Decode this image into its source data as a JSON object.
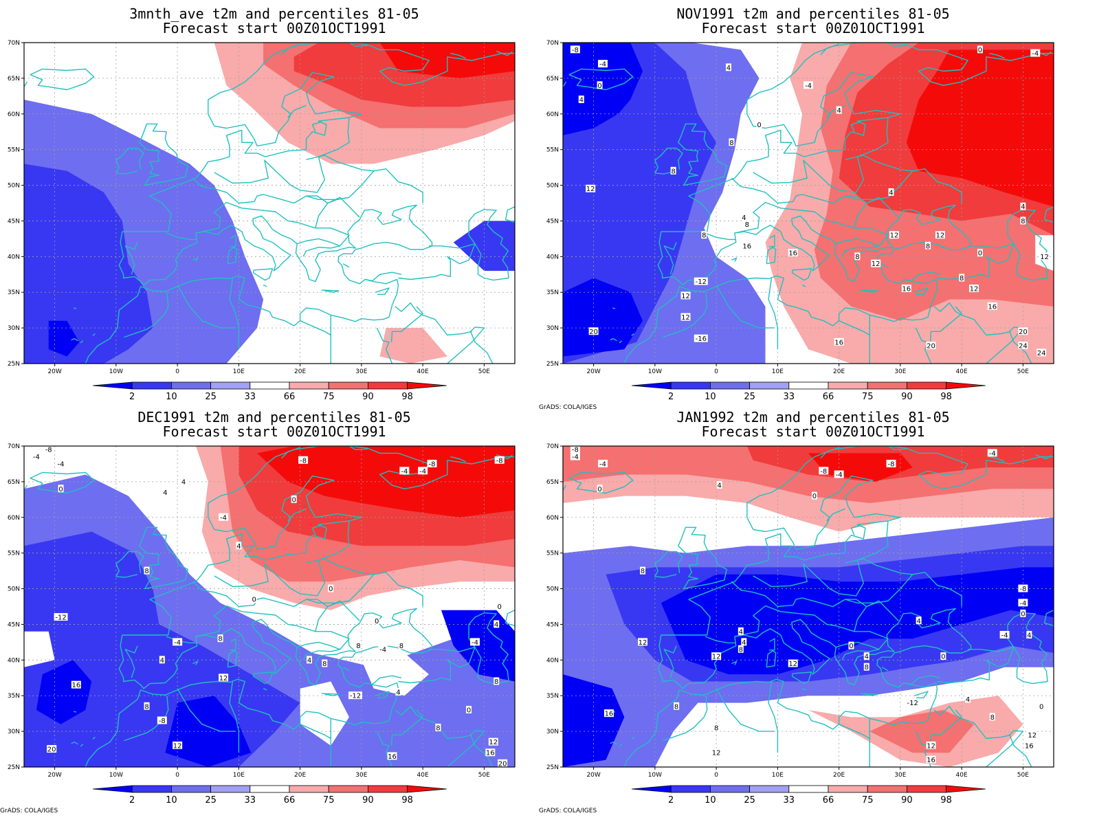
{
  "credit": "GrADS: COLA/IGES",
  "colorbar": {
    "labels": [
      "2",
      "10",
      "25",
      "33",
      "66",
      "75",
      "90",
      "98"
    ],
    "colors": [
      "#0000f5",
      "#3838f2",
      "#6e6ef0",
      "#a0a0f5",
      "#ffffff",
      "#f9aaaa",
      "#f57070",
      "#f03c3c",
      "#f50a0a"
    ]
  },
  "axes": {
    "lon_ticks": [
      "20W",
      "10W",
      "0",
      "10E",
      "20E",
      "30E",
      "40E",
      "50E"
    ],
    "lat_ticks": [
      "25N",
      "30N",
      "35N",
      "40N",
      "45N",
      "50N",
      "55N",
      "60N",
      "65N",
      "70N"
    ],
    "lon_range": [
      -25,
      55
    ],
    "lat_range": [
      25,
      70
    ]
  },
  "coast_color": "#20c0c0",
  "panels": [
    {
      "title": "3mnth_ave t2m and percentiles 81-05",
      "subtitle": "Forecast start 00Z01OCT1991",
      "show_credit": false,
      "contour_labels": []
    },
    {
      "title": "NOV1991 t2m and percentiles 81-05",
      "subtitle": "Forecast start 00Z01OCT1991",
      "show_credit": true,
      "contour_labels": [
        {
          "t": "-8",
          "lon": -23,
          "lat": 69
        },
        {
          "t": "-4",
          "lon": -18.5,
          "lat": 67
        },
        {
          "t": "0",
          "lon": -19,
          "lat": 64
        },
        {
          "t": "4",
          "lon": -22,
          "lat": 62
        },
        {
          "t": "4",
          "lon": 2,
          "lat": 66.5
        },
        {
          "t": "-4",
          "lon": 15,
          "lat": 64
        },
        {
          "t": "0",
          "lon": 43,
          "lat": 69
        },
        {
          "t": "-4",
          "lon": 52,
          "lat": 68.5
        },
        {
          "t": "4",
          "lon": 20,
          "lat": 60.5
        },
        {
          "t": "0",
          "lon": 7,
          "lat": 58.5
        },
        {
          "t": "8",
          "lon": 2.5,
          "lat": 56
        },
        {
          "t": "8",
          "lon": -7,
          "lat": 52
        },
        {
          "t": "12",
          "lon": -20.5,
          "lat": 49.5
        },
        {
          "t": "4",
          "lon": 4.5,
          "lat": 45.5
        },
        {
          "t": "8",
          "lon": 5,
          "lat": 44.5
        },
        {
          "t": "4",
          "lon": 28.5,
          "lat": 49
        },
        {
          "t": "4",
          "lon": 50,
          "lat": 47
        },
        {
          "t": "8",
          "lon": 50,
          "lat": 45
        },
        {
          "t": "8",
          "lon": -2,
          "lat": 43
        },
        {
          "t": "16",
          "lon": 5,
          "lat": 41.5
        },
        {
          "t": "16",
          "lon": 12.5,
          "lat": 40.5
        },
        {
          "t": "12",
          "lon": 29,
          "lat": 43
        },
        {
          "t": "12",
          "lon": 36.5,
          "lat": 43
        },
        {
          "t": "8",
          "lon": 34.5,
          "lat": 41.5
        },
        {
          "t": "8",
          "lon": 23,
          "lat": 40
        },
        {
          "t": "12",
          "lon": 26,
          "lat": 39
        },
        {
          "t": "0",
          "lon": 43,
          "lat": 40.5
        },
        {
          "t": "12",
          "lon": 53.5,
          "lat": 40
        },
        {
          "t": "-12",
          "lon": -2.5,
          "lat": 36.5
        },
        {
          "t": "12",
          "lon": -5,
          "lat": 34.5
        },
        {
          "t": "8",
          "lon": 40,
          "lat": 37
        },
        {
          "t": "16",
          "lon": 31,
          "lat": 35.5
        },
        {
          "t": "12",
          "lon": 42,
          "lat": 35.5
        },
        {
          "t": "16",
          "lon": 45,
          "lat": 33
        },
        {
          "t": "12",
          "lon": -5,
          "lat": 31.5
        },
        {
          "t": "-16",
          "lon": -2.5,
          "lat": 28.5
        },
        {
          "t": "16",
          "lon": 20,
          "lat": 28
        },
        {
          "t": "20",
          "lon": -20,
          "lat": 29.5
        },
        {
          "t": "20",
          "lon": 50,
          "lat": 29.5
        },
        {
          "t": "24",
          "lon": 50,
          "lat": 27.5
        },
        {
          "t": "24",
          "lon": 53,
          "lat": 26.5
        },
        {
          "t": "20",
          "lon": 35,
          "lat": 27.5
        }
      ]
    },
    {
      "title": "DEC1991 t2m and percentiles 81-05",
      "subtitle": "Forecast start 00Z01OCT1991",
      "show_credit": true,
      "contour_labels": [
        {
          "t": "-8",
          "lon": -21,
          "lat": 69.5
        },
        {
          "t": "-4",
          "lon": -23,
          "lat": 68.5
        },
        {
          "t": "-4",
          "lon": -19,
          "lat": 67.5
        },
        {
          "t": "0",
          "lon": -19,
          "lat": 64
        },
        {
          "t": "4",
          "lon": 1,
          "lat": 65
        },
        {
          "t": "4",
          "lon": -2,
          "lat": 63.5
        },
        {
          "t": "-8",
          "lon": 20.5,
          "lat": 68
        },
        {
          "t": "-8",
          "lon": 41.5,
          "lat": 67.5
        },
        {
          "t": "-4",
          "lon": 37,
          "lat": 66.5
        },
        {
          "t": "-4",
          "lon": 40,
          "lat": 66.5
        },
        {
          "t": "-8",
          "lon": 52.5,
          "lat": 68
        },
        {
          "t": "0",
          "lon": 19,
          "lat": 62.5
        },
        {
          "t": "-4",
          "lon": 7.5,
          "lat": 60
        },
        {
          "t": "4",
          "lon": 10,
          "lat": 56
        },
        {
          "t": "8",
          "lon": -5,
          "lat": 52.5
        },
        {
          "t": "0",
          "lon": 25,
          "lat": 50
        },
        {
          "t": "0",
          "lon": 12.5,
          "lat": 48.5
        },
        {
          "t": "-12",
          "lon": -19,
          "lat": 46
        },
        {
          "t": "0",
          "lon": 32.5,
          "lat": 45.5
        },
        {
          "t": "0",
          "lon": 52.5,
          "lat": 47.5
        },
        {
          "t": "4",
          "lon": 52,
          "lat": 45
        },
        {
          "t": "-4",
          "lon": 0,
          "lat": 42.5
        },
        {
          "t": "8",
          "lon": 7,
          "lat": 43
        },
        {
          "t": "8",
          "lon": 29.5,
          "lat": 42
        },
        {
          "t": "-4",
          "lon": 48.5,
          "lat": 42.5
        },
        {
          "t": "4",
          "lon": 21.5,
          "lat": 40
        },
        {
          "t": "-4",
          "lon": 33.5,
          "lat": 41.5
        },
        {
          "t": "8",
          "lon": 36.5,
          "lat": 42
        },
        {
          "t": "4",
          "lon": -2.5,
          "lat": 40
        },
        {
          "t": "8",
          "lon": 24,
          "lat": 39.5
        },
        {
          "t": "12",
          "lon": 7.5,
          "lat": 37.5
        },
        {
          "t": "8",
          "lon": 52,
          "lat": 37
        },
        {
          "t": "16",
          "lon": -16.5,
          "lat": 36.5
        },
        {
          "t": "4",
          "lon": 36,
          "lat": 35.5
        },
        {
          "t": "-12",
          "lon": 29,
          "lat": 35
        },
        {
          "t": "8",
          "lon": -5,
          "lat": 33.5
        },
        {
          "t": "-8",
          "lon": -2.5,
          "lat": 31.5
        },
        {
          "t": "0",
          "lon": 47.5,
          "lat": 33
        },
        {
          "t": "8",
          "lon": 42.5,
          "lat": 30.5
        },
        {
          "t": "12",
          "lon": 0,
          "lat": 28
        },
        {
          "t": "20",
          "lon": -20.5,
          "lat": 27.5
        },
        {
          "t": "12",
          "lon": 51.5,
          "lat": 28.5
        },
        {
          "t": "16",
          "lon": 51,
          "lat": 27
        },
        {
          "t": "16",
          "lon": 35,
          "lat": 26.5
        },
        {
          "t": "20",
          "lon": 53,
          "lat": 25.5
        }
      ]
    },
    {
      "title": "JAN1992 t2m and percentiles 81-05",
      "subtitle": "Forecast start 00Z01OCT1991",
      "show_credit": true,
      "contour_labels": [
        {
          "t": "-8",
          "lon": -23,
          "lat": 69.5
        },
        {
          "t": "-4",
          "lon": -23,
          "lat": 68.5
        },
        {
          "t": "-4",
          "lon": -18.5,
          "lat": 67.5
        },
        {
          "t": "0",
          "lon": -19,
          "lat": 64
        },
        {
          "t": "4",
          "lon": 0.5,
          "lat": 64.5
        },
        {
          "t": "-8",
          "lon": 17.5,
          "lat": 66.5
        },
        {
          "t": "-4",
          "lon": 20,
          "lat": 66
        },
        {
          "t": "-8",
          "lon": 28.5,
          "lat": 67.5
        },
        {
          "t": "-4",
          "lon": 45,
          "lat": 69
        },
        {
          "t": "0",
          "lon": 16,
          "lat": 63
        },
        {
          "t": "8",
          "lon": -12,
          "lat": 52.5
        },
        {
          "t": "-8",
          "lon": 50,
          "lat": 50
        },
        {
          "t": "-4",
          "lon": 50,
          "lat": 48
        },
        {
          "t": "0",
          "lon": 50,
          "lat": 46.5
        },
        {
          "t": "4",
          "lon": 51,
          "lat": 43.5
        },
        {
          "t": "4",
          "lon": 33,
          "lat": 45.5
        },
        {
          "t": "12",
          "lon": -12,
          "lat": 42.5
        },
        {
          "t": "4",
          "lon": 4,
          "lat": 44
        },
        {
          "t": "4",
          "lon": 4.5,
          "lat": 42.5
        },
        {
          "t": "8",
          "lon": 4,
          "lat": 41.5
        },
        {
          "t": "-4",
          "lon": 47,
          "lat": 43.5
        },
        {
          "t": "12",
          "lon": 0,
          "lat": 40.5
        },
        {
          "t": "0",
          "lon": 22,
          "lat": 42
        },
        {
          "t": "12",
          "lon": 12.5,
          "lat": 39.5
        },
        {
          "t": "4",
          "lon": 24.5,
          "lat": 40.5
        },
        {
          "t": "0",
          "lon": 37,
          "lat": 40.5
        },
        {
          "t": "8",
          "lon": 24.5,
          "lat": 39
        },
        {
          "t": "8",
          "lon": -6.5,
          "lat": 33.5
        },
        {
          "t": "16",
          "lon": -17.5,
          "lat": 32.5
        },
        {
          "t": "-12",
          "lon": 32,
          "lat": 34
        },
        {
          "t": "4",
          "lon": 41,
          "lat": 34.5
        },
        {
          "t": "0",
          "lon": 53,
          "lat": 33.5
        },
        {
          "t": "8",
          "lon": 45,
          "lat": 32
        },
        {
          "t": "8",
          "lon": 0,
          "lat": 30.5
        },
        {
          "t": "12",
          "lon": 0,
          "lat": 27
        },
        {
          "t": "12",
          "lon": 51.5,
          "lat": 29.5
        },
        {
          "t": "12",
          "lon": 35,
          "lat": 28
        },
        {
          "t": "16",
          "lon": 51,
          "lat": 28
        },
        {
          "t": "16",
          "lon": 35,
          "lat": 26
        }
      ]
    }
  ]
}
